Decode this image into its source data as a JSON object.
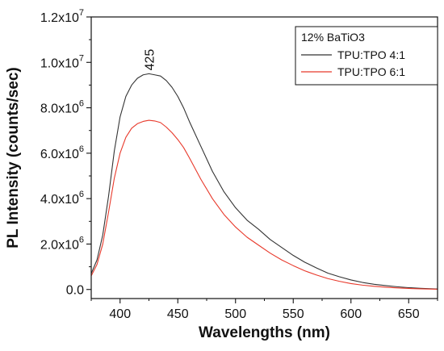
{
  "chart_data": {
    "type": "line",
    "title": "",
    "xlabel": "Wavelengths (nm)",
    "ylabel": "PL Intensity (counts/sec)",
    "xlim": [
      375,
      675
    ],
    "ylim": [
      -400000,
      12000000
    ],
    "x_ticks": [
      400,
      450,
      500,
      550,
      600,
      650
    ],
    "x_tick_labels": [
      "400",
      "450",
      "500",
      "550",
      "600",
      "650"
    ],
    "y_ticks": [
      0,
      2000000,
      4000000,
      6000000,
      8000000,
      10000000,
      12000000
    ],
    "y_tick_labels": [
      {
        "mantissa": "0.0",
        "exp": ""
      },
      {
        "mantissa": "2.0x10",
        "exp": "6"
      },
      {
        "mantissa": "4.0x10",
        "exp": "6"
      },
      {
        "mantissa": "6.0x10",
        "exp": "6"
      },
      {
        "mantissa": "8.0x10",
        "exp": "6"
      },
      {
        "mantissa": "1.0x10",
        "exp": "7"
      },
      {
        "mantissa": "1.2x10",
        "exp": "7"
      }
    ],
    "grid": false,
    "legend": {
      "title": "12% BaTiO3",
      "placement": "top-right"
    },
    "annotation": {
      "text": "425",
      "x": 425,
      "y": 9500000
    },
    "series": [
      {
        "name": "TPU:TPO 4:1",
        "color": "#333333",
        "x": [
          375,
          380,
          385,
          390,
          395,
          400,
          405,
          410,
          415,
          420,
          425,
          430,
          435,
          440,
          445,
          450,
          455,
          460,
          470,
          480,
          490,
          500,
          510,
          520,
          530,
          540,
          550,
          560,
          570,
          580,
          590,
          600,
          610,
          620,
          630,
          640,
          650,
          660,
          675
        ],
        "y": [
          700000,
          1300000,
          2400000,
          4100000,
          6100000,
          7600000,
          8500000,
          9000000,
          9300000,
          9450000,
          9500000,
          9450000,
          9400000,
          9200000,
          8900000,
          8500000,
          8000000,
          7400000,
          6300000,
          5200000,
          4300000,
          3600000,
          3050000,
          2650000,
          2200000,
          1850000,
          1500000,
          1200000,
          950000,
          720000,
          560000,
          420000,
          310000,
          230000,
          170000,
          120000,
          80000,
          50000,
          20000
        ]
      },
      {
        "name": "TPU:TPO 6:1",
        "color": "#e8392b",
        "x": [
          375,
          380,
          385,
          390,
          395,
          400,
          405,
          410,
          415,
          420,
          425,
          430,
          435,
          440,
          445,
          450,
          455,
          460,
          470,
          480,
          490,
          500,
          510,
          520,
          530,
          540,
          550,
          560,
          570,
          580,
          590,
          600,
          610,
          620,
          630,
          640,
          650,
          660,
          675
        ],
        "y": [
          600000,
          1100000,
          2000000,
          3400000,
          4900000,
          6000000,
          6700000,
          7100000,
          7300000,
          7400000,
          7450000,
          7420000,
          7350000,
          7150000,
          6900000,
          6600000,
          6250000,
          5800000,
          4850000,
          4000000,
          3300000,
          2750000,
          2300000,
          1950000,
          1600000,
          1300000,
          1050000,
          820000,
          640000,
          480000,
          360000,
          260000,
          190000,
          140000,
          100000,
          70000,
          45000,
          30000,
          10000
        ]
      }
    ]
  }
}
